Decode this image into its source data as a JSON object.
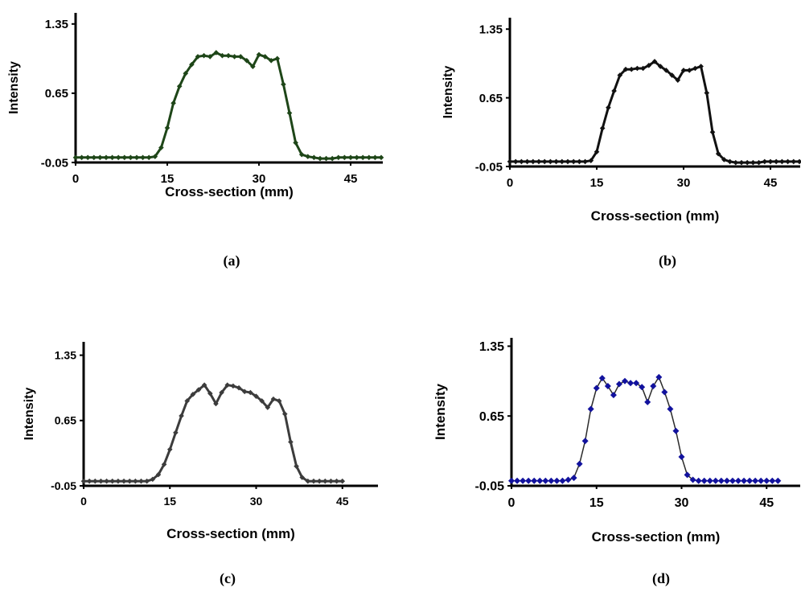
{
  "figure": {
    "panel_labels": [
      "(a)",
      "(b)",
      "(c)",
      "(d)"
    ]
  },
  "chart_data": [
    {
      "panel": "(a)",
      "type": "line",
      "xlabel": "Cross-section (mm)",
      "ylabel": "Intensity",
      "xticks": [
        "0",
        "15",
        "30",
        "45"
      ],
      "yticks": [
        "-0.05",
        "0.65",
        "1.35"
      ],
      "xlim": [
        0,
        50
      ],
      "ylim": [
        -0.05,
        1.4
      ],
      "line_color": "#1e4618",
      "marker_color": "#1e4618",
      "line_width": 3,
      "x": [
        0,
        1,
        2,
        3,
        4,
        5,
        6,
        7,
        8,
        9,
        10,
        11,
        12,
        13,
        14,
        15,
        16,
        17,
        18,
        19,
        20,
        21,
        22,
        23,
        24,
        25,
        26,
        27,
        28,
        29,
        30,
        31,
        32,
        33,
        34,
        35,
        36,
        37,
        38,
        39,
        40,
        41,
        42,
        43,
        44,
        45,
        46,
        47,
        48,
        49,
        50
      ],
      "y": [
        0,
        0,
        0,
        0,
        0,
        0,
        0,
        0,
        0,
        0,
        0,
        0,
        0,
        0.01,
        0.1,
        0.3,
        0.55,
        0.72,
        0.85,
        0.94,
        1.02,
        1.03,
        1.02,
        1.06,
        1.03,
        1.03,
        1.02,
        1.02,
        0.98,
        0.92,
        1.04,
        1.02,
        0.98,
        1.0,
        0.74,
        0.45,
        0.15,
        0.03,
        0.01,
        0,
        -0.01,
        -0.01,
        -0.01,
        0,
        0,
        0,
        0,
        0,
        0,
        0,
        0
      ]
    },
    {
      "panel": "(b)",
      "type": "line",
      "xlabel": "Cross-section (mm)",
      "ylabel": "Intensity",
      "xticks": [
        "0",
        "15",
        "30",
        "45"
      ],
      "yticks": [
        "-0.05",
        "0.65",
        "1.35"
      ],
      "xlim": [
        0,
        50
      ],
      "ylim": [
        -0.05,
        1.4
      ],
      "line_color": "#111111",
      "marker_color": "#111111",
      "line_width": 3,
      "x": [
        0,
        1,
        2,
        3,
        4,
        5,
        6,
        7,
        8,
        9,
        10,
        11,
        12,
        13,
        14,
        15,
        16,
        17,
        18,
        19,
        20,
        21,
        22,
        23,
        24,
        25,
        26,
        27,
        28,
        29,
        30,
        31,
        32,
        33,
        34,
        35,
        36,
        37,
        38,
        39,
        40,
        41,
        42,
        43,
        44,
        45,
        46,
        47,
        48,
        49,
        50
      ],
      "y": [
        0,
        0,
        0,
        0,
        0,
        0,
        0,
        0,
        0,
        0,
        0,
        0,
        0,
        0,
        0.01,
        0.1,
        0.34,
        0.55,
        0.72,
        0.88,
        0.94,
        0.94,
        0.95,
        0.95,
        0.98,
        1.02,
        0.97,
        0.93,
        0.88,
        0.83,
        0.93,
        0.93,
        0.95,
        0.97,
        0.7,
        0.3,
        0.08,
        0.02,
        0,
        -0.01,
        -0.01,
        -0.01,
        -0.01,
        -0.01,
        0,
        0,
        0,
        0,
        0,
        0,
        0
      ]
    },
    {
      "panel": "(c)",
      "type": "line",
      "xlabel": "Cross-section (mm)",
      "ylabel": "Intensity",
      "xticks": [
        "0",
        "15",
        "30",
        "45"
      ],
      "yticks": [
        "-0.05",
        "0.65",
        "1.35"
      ],
      "xlim": [
        0,
        50
      ],
      "ylim": [
        -0.05,
        1.4
      ],
      "line_color": "#3c3c3c",
      "marker_color": "#3c3c3c",
      "line_width": 3,
      "x": [
        0,
        1,
        2,
        3,
        4,
        5,
        6,
        7,
        8,
        9,
        10,
        11,
        12,
        13,
        14,
        15,
        16,
        17,
        18,
        19,
        20,
        21,
        22,
        23,
        24,
        25,
        26,
        27,
        28,
        29,
        30,
        31,
        32,
        33,
        34,
        35,
        36,
        37,
        38,
        39,
        40,
        41,
        42,
        43,
        44,
        45
      ],
      "y": [
        0,
        0,
        0,
        0,
        0,
        0,
        0,
        0,
        0,
        0,
        0,
        0,
        0.02,
        0.07,
        0.18,
        0.34,
        0.52,
        0.7,
        0.86,
        0.93,
        0.98,
        1.03,
        0.94,
        0.83,
        0.95,
        1.03,
        1.02,
        1.0,
        0.96,
        0.95,
        0.91,
        0.86,
        0.79,
        0.88,
        0.86,
        0.72,
        0.42,
        0.16,
        0.04,
        0,
        0,
        0,
        0,
        0,
        0,
        0
      ]
    },
    {
      "panel": "(d)",
      "type": "scatter",
      "xlabel": "Cross-section (mm)",
      "ylabel": "Intensity",
      "xticks": [
        "0",
        "15",
        "30",
        "45"
      ],
      "yticks": [
        "-0.05",
        "0.65",
        "1.35"
      ],
      "xlim": [
        0,
        50
      ],
      "ylim": [
        -0.05,
        1.4
      ],
      "line_color": "#2b2b2b",
      "marker_color": "#12129e",
      "line_width": 1.5,
      "x": [
        0,
        1,
        2,
        3,
        4,
        5,
        6,
        7,
        8,
        9,
        10,
        11,
        12,
        13,
        14,
        15,
        16,
        17,
        18,
        19,
        20,
        21,
        22,
        23,
        24,
        25,
        26,
        27,
        28,
        29,
        30,
        31,
        32,
        33,
        34,
        35,
        36,
        37,
        38,
        39,
        40,
        41,
        42,
        43,
        44,
        45,
        46,
        47
      ],
      "y": [
        0,
        0,
        0,
        0,
        0,
        0,
        0,
        0,
        0,
        0,
        0.01,
        0.03,
        0.17,
        0.4,
        0.72,
        0.93,
        1.03,
        0.95,
        0.86,
        0.97,
        1.0,
        0.98,
        0.98,
        0.94,
        0.79,
        0.95,
        1.04,
        0.89,
        0.72,
        0.5,
        0.24,
        0.06,
        0.01,
        0,
        0,
        0,
        0,
        0,
        0,
        0,
        0,
        0,
        0,
        0,
        0,
        0,
        0,
        0
      ]
    }
  ]
}
